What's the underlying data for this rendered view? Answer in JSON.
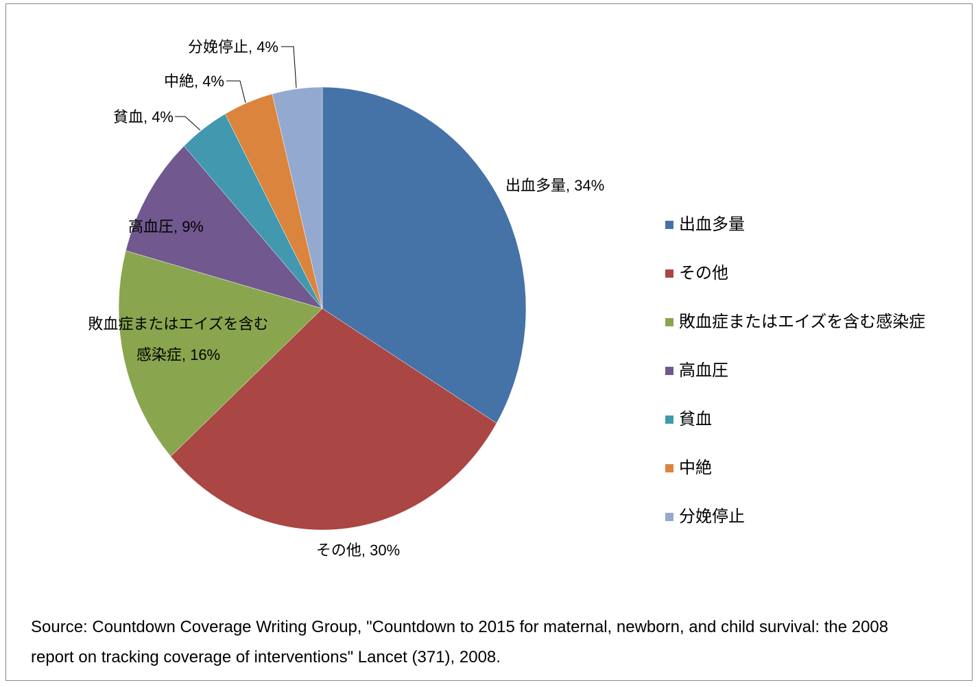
{
  "chart_data": {
    "type": "pie",
    "categories": [
      "出血多量",
      "その他",
      "敗血症またはエイズを含む感染症",
      "高血圧",
      "貧血",
      "中絶",
      "分娩停止"
    ],
    "values": [
      34,
      30,
      16,
      9,
      4,
      4,
      4
    ],
    "value_labels": [
      "出血多量, 34%",
      "その他, 30%",
      "敗血症またはエイズを含む感染症, 16%",
      "高血圧, 9%",
      "貧血, 4%",
      "中絶, 4%",
      "分娩停止, 4%"
    ],
    "colors": [
      "#4572a7",
      "#aa4643",
      "#89a54e",
      "#71588f",
      "#4198af",
      "#db843d",
      "#93a9cf"
    ],
    "legend": "right",
    "source": "Source: Countdown Coverage Writing Group, \"Countdown to 2015 for maternal, newborn, and child survival: the 2008 report on tracking coverage of interventions\" Lancet (371), 2008."
  }
}
